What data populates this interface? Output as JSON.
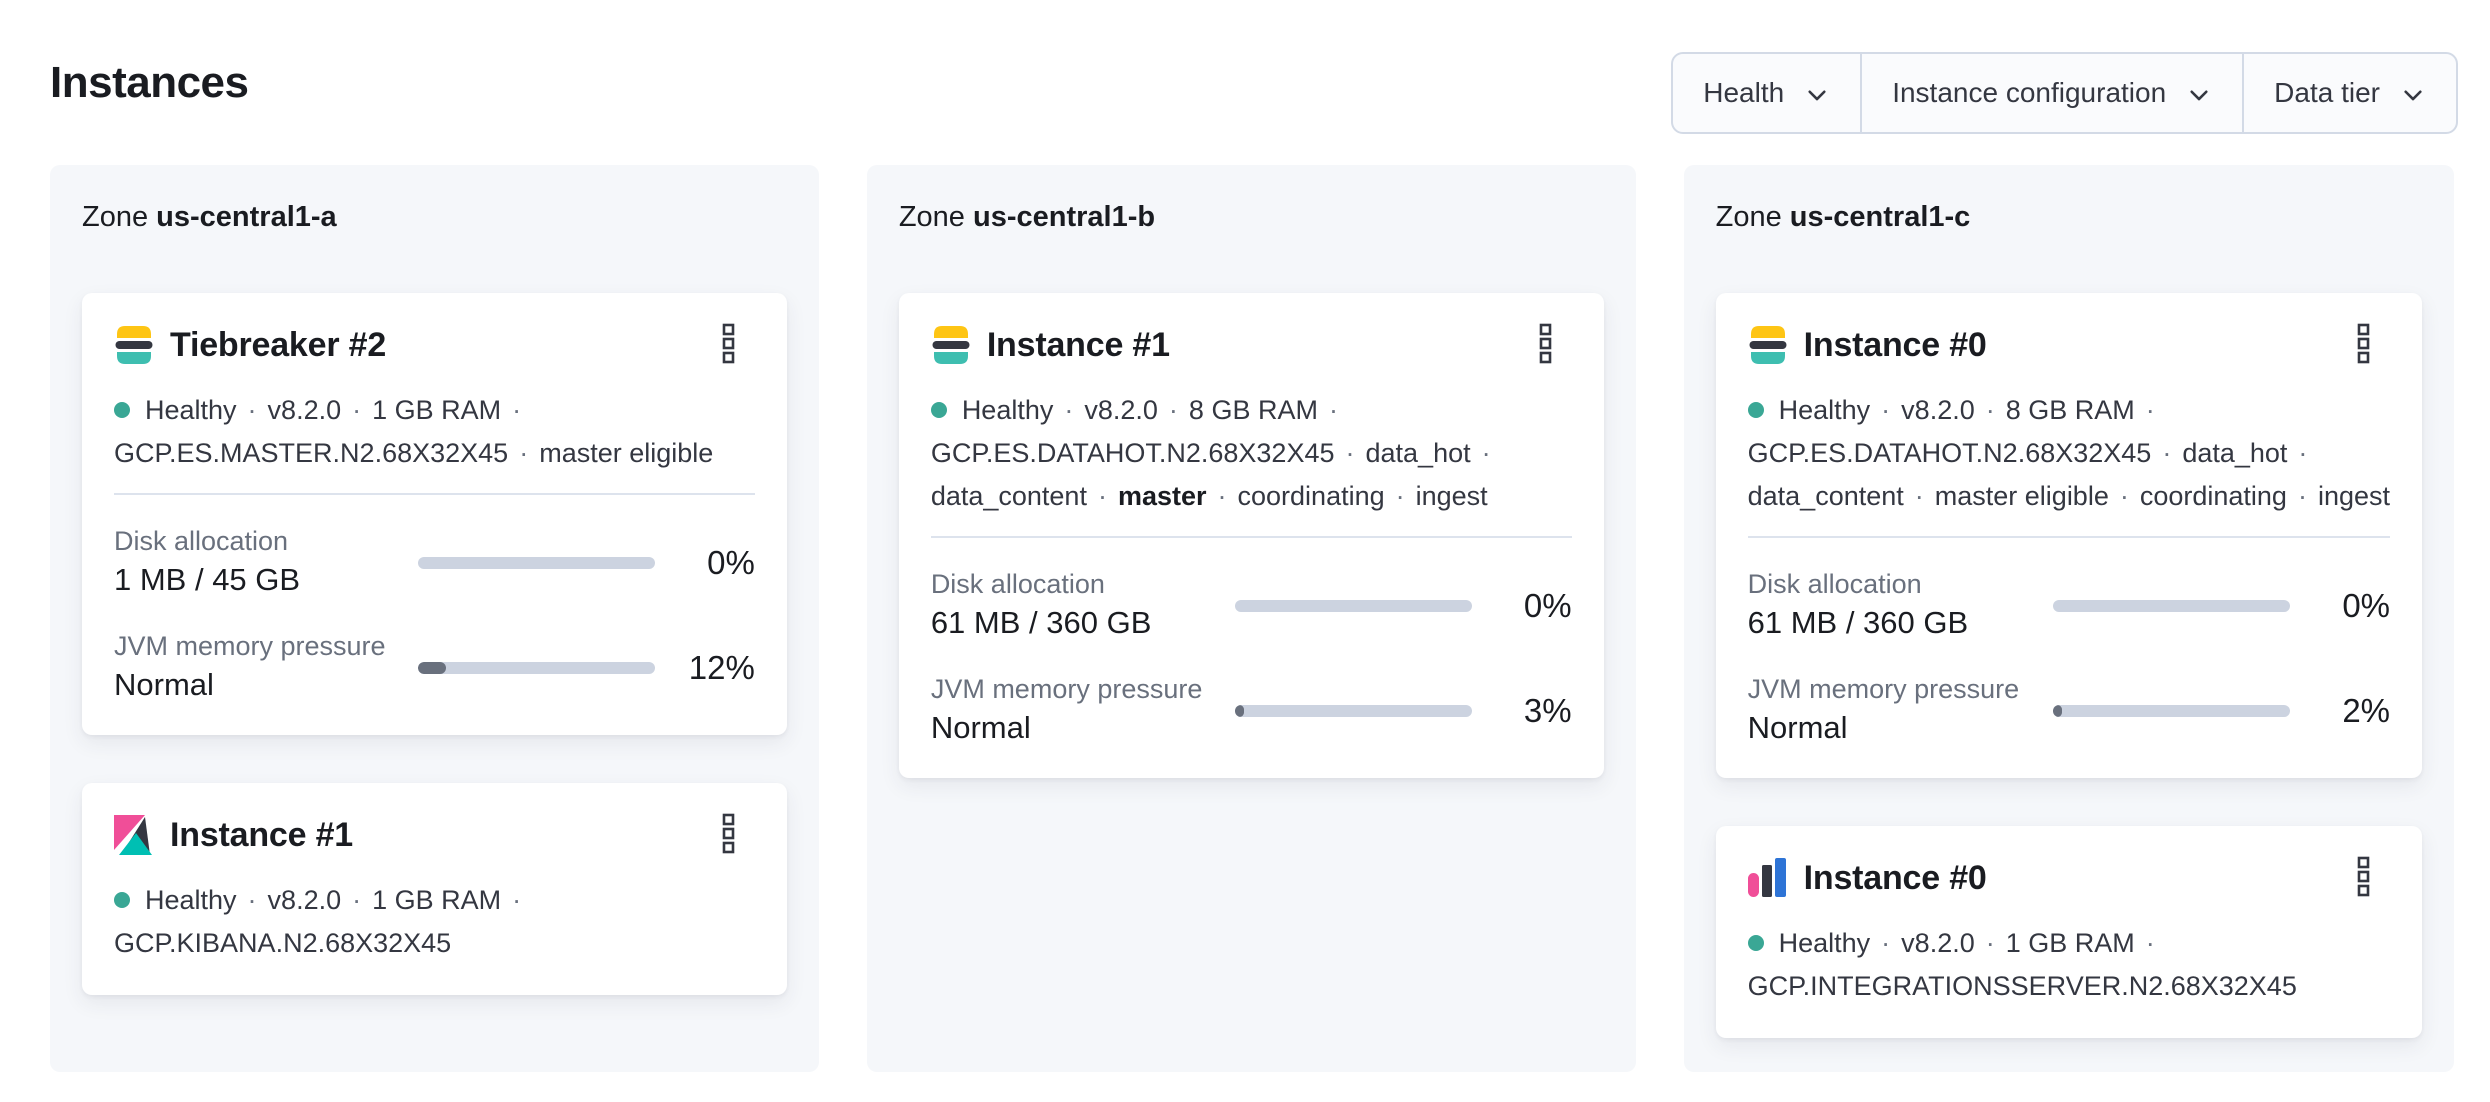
{
  "page": {
    "title": "Instances"
  },
  "ui": {
    "sep": "·"
  },
  "filters": {
    "items": [
      {
        "label": "Health"
      },
      {
        "label": "Instance configuration"
      },
      {
        "label": "Data tier"
      }
    ]
  },
  "zones": [
    {
      "prefix": "Zone",
      "name": "us-central1-a",
      "cards": [
        {
          "icon": "elasticsearch-logo",
          "title": "Tiebreaker #2",
          "lines": [
            {
              "dot": true,
              "trail": true,
              "tokens": [
                {
                  "t": "Healthy"
                },
                {
                  "t": "v8.2.0"
                },
                {
                  "t": "1 GB RAM"
                }
              ]
            },
            {
              "tokens": [
                {
                  "t": "GCP.ES.MASTER.N2.68X32X45"
                },
                {
                  "t": "master eligible"
                }
              ]
            }
          ],
          "stats": [
            {
              "label": "Disk allocation",
              "value": "1 MB / 45 GB",
              "pct": "0%",
              "fill": 0
            },
            {
              "label": "JVM memory pressure",
              "value": "Normal",
              "pct": "12%",
              "fill": 12
            }
          ]
        },
        {
          "icon": "kibana-logo",
          "title": "Instance #1",
          "lines": [
            {
              "dot": true,
              "trail": true,
              "tokens": [
                {
                  "t": "Healthy"
                },
                {
                  "t": "v8.2.0"
                },
                {
                  "t": "1 GB RAM"
                }
              ]
            },
            {
              "tokens": [
                {
                  "t": "GCP.KIBANA.N2.68X32X45"
                }
              ]
            }
          ]
        }
      ]
    },
    {
      "prefix": "Zone",
      "name": "us-central1-b",
      "cards": [
        {
          "icon": "elasticsearch-logo",
          "title": "Instance #1",
          "lines": [
            {
              "dot": true,
              "trail": true,
              "tokens": [
                {
                  "t": "Healthy"
                },
                {
                  "t": "v8.2.0"
                },
                {
                  "t": "8 GB RAM"
                }
              ]
            },
            {
              "trail": true,
              "tokens": [
                {
                  "t": "GCP.ES.DATAHOT.N2.68X32X45"
                },
                {
                  "t": "data_hot"
                }
              ]
            },
            {
              "tokens": [
                {
                  "t": "data_content"
                },
                {
                  "t": "master",
                  "bold": true
                },
                {
                  "t": "coordinating"
                },
                {
                  "t": "ingest"
                }
              ]
            }
          ],
          "stats": [
            {
              "label": "Disk allocation",
              "value": "61 MB / 360 GB",
              "pct": "0%",
              "fill": 0
            },
            {
              "label": "JVM memory pressure",
              "value": "Normal",
              "pct": "3%",
              "fill": 3
            }
          ]
        }
      ]
    },
    {
      "prefix": "Zone",
      "name": "us-central1-c",
      "cards": [
        {
          "icon": "elasticsearch-logo",
          "title": "Instance #0",
          "lines": [
            {
              "dot": true,
              "trail": true,
              "tokens": [
                {
                  "t": "Healthy"
                },
                {
                  "t": "v8.2.0"
                },
                {
                  "t": "8 GB RAM"
                }
              ]
            },
            {
              "trail": true,
              "tokens": [
                {
                  "t": "GCP.ES.DATAHOT.N2.68X32X45"
                },
                {
                  "t": "data_hot"
                }
              ]
            },
            {
              "tokens": [
                {
                  "t": "data_content"
                },
                {
                  "t": "master eligible"
                },
                {
                  "t": "coordinating"
                },
                {
                  "t": "ingest"
                }
              ]
            }
          ],
          "stats": [
            {
              "label": "Disk allocation",
              "value": "61 MB / 360 GB",
              "pct": "0%",
              "fill": 0
            },
            {
              "label": "JVM memory pressure",
              "value": "Normal",
              "pct": "2%",
              "fill": 2
            }
          ]
        },
        {
          "icon": "integrations-server-logo",
          "title": "Instance #0",
          "lines": [
            {
              "dot": true,
              "trail": true,
              "tokens": [
                {
                  "t": "Healthy"
                },
                {
                  "t": "v8.2.0"
                },
                {
                  "t": "1 GB RAM"
                }
              ]
            },
            {
              "tokens": [
                {
                  "t": "GCP.INTEGRATIONSSERVER.N2.68X32X45"
                }
              ]
            }
          ]
        }
      ]
    }
  ],
  "colors": {
    "title": "#1a1c21",
    "text": "#343741",
    "subdued": "#69707d",
    "border": "#d3dae6",
    "panel": "#f5f7fa",
    "filter-bg": "#fafbfd",
    "track": "#ccd3e0",
    "fill": "#69707d",
    "healthy": "#3aa795",
    "es-yellow": "#fec514",
    "es-teal": "#3ebeb0",
    "brand-dark": "#343741",
    "kibana-pink": "#f04e98",
    "integrations-blue": "#2e74d6"
  }
}
